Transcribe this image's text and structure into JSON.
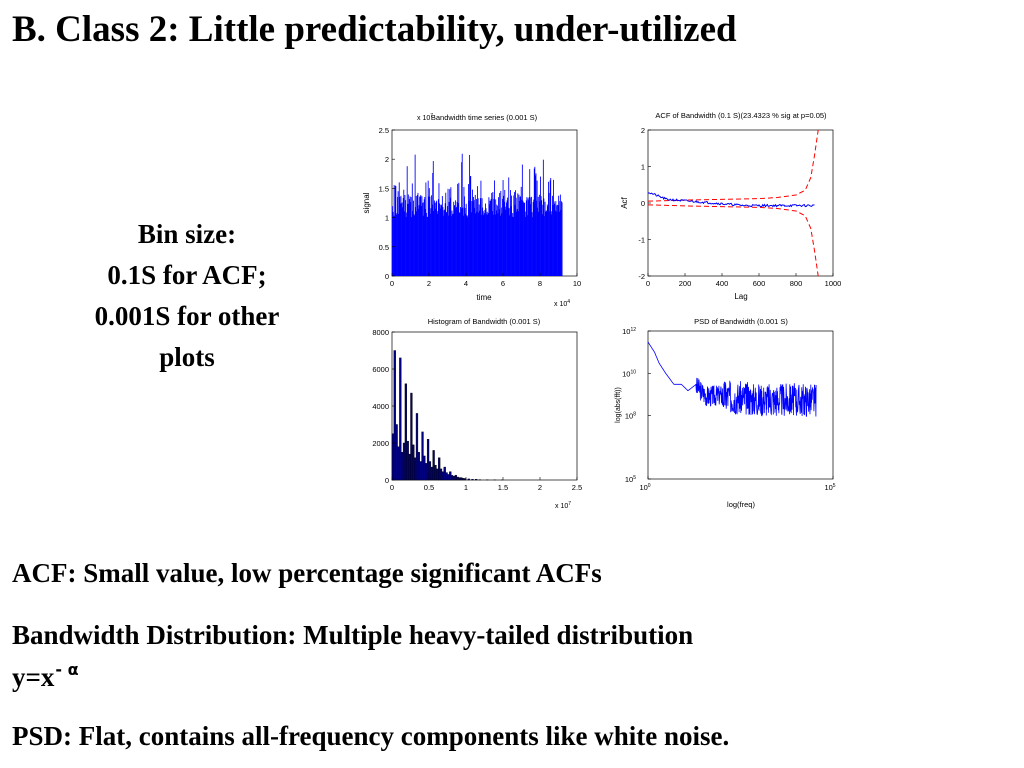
{
  "slide": {
    "title": "B. Class 2: Little predictability, under-utilized",
    "bin_note": [
      "Bin size:",
      "0.1S for ACF;",
      "0.001S for other",
      "plots"
    ],
    "bullets": {
      "acf": "ACF: Small value, low percentage significant ACFs",
      "dist": "Bandwidth Distribution: Multiple heavy-tailed distribution",
      "formula_base": "y=x",
      "formula_exp": "- α",
      "psd": "PSD: Flat, contains all-frequency components like white noise."
    }
  },
  "colors": {
    "series": "#0000ff",
    "significance": "#ff0000",
    "hist_fill": "#000080"
  },
  "chart_data": [
    {
      "type": "bar",
      "title": "Bandwidth time series (0.001 S)",
      "ylabel_multiplier": "x 10",
      "ylabel_multiplier_exp": "7",
      "xlabel": "time",
      "xlabel_multiplier": "x 10",
      "xlabel_multiplier_exp": "4",
      "ylabel": "signal",
      "xlim": [
        0,
        10
      ],
      "ylim": [
        0,
        2.5
      ],
      "xticks": [
        "0",
        "2",
        "4",
        "6",
        "8",
        "10"
      ],
      "yticks": [
        "0",
        "0.5",
        "1",
        "1.5",
        "2",
        "2.5"
      ],
      "data_extent_x": 9.2,
      "baseline": 1.2,
      "peak": 2.2,
      "series": [
        {
          "color": "#0000ff"
        }
      ]
    },
    {
      "type": "line",
      "title": "ACF of Bandwidth (0.1 S)(23.4323 % sig at p=0.05)",
      "xlabel": "Lag",
      "ylabel": "Acf",
      "xlim": [
        0,
        1000
      ],
      "ylim": [
        -2,
        2
      ],
      "xticks": [
        "0",
        "200",
        "400",
        "600",
        "800",
        "1000"
      ],
      "yticks": [
        "-2",
        "-1",
        "0",
        "1",
        "2"
      ],
      "acf": {
        "x": [
          0,
          20,
          100,
          200,
          300,
          400,
          500,
          600,
          700,
          800,
          900
        ],
        "y": [
          0.3,
          0.2,
          0.1,
          0.02,
          0.0,
          -0.05,
          -0.07,
          -0.06,
          -0.05,
          -0.05,
          0.0
        ]
      },
      "confidence_upper": {
        "x": [
          0,
          200,
          400,
          600,
          700,
          800,
          850,
          880,
          900,
          920
        ],
        "y": [
          0.05,
          0.08,
          0.1,
          0.12,
          0.15,
          0.22,
          0.35,
          0.7,
          1.3,
          2.0
        ]
      },
      "confidence_lower": {
        "x": [
          0,
          200,
          400,
          600,
          700,
          800,
          850,
          880,
          900,
          920
        ],
        "y": [
          -0.05,
          -0.08,
          -0.1,
          -0.12,
          -0.15,
          -0.22,
          -0.35,
          -0.7,
          -1.3,
          -2.0
        ]
      }
    },
    {
      "type": "bar",
      "title": "Histogram of Bandwidth (0.001 S)",
      "xlim": [
        0,
        2.5
      ],
      "ylim": [
        0,
        8000
      ],
      "xticks": [
        "0",
        "0.5",
        "1",
        "1.5",
        "2",
        "2.5"
      ],
      "yticks": [
        "0",
        "2000",
        "4000",
        "6000",
        "8000"
      ],
      "xlabel_multiplier": "x 10",
      "xlabel_multiplier_exp": "7",
      "bin_width": 0.025,
      "bins_x": [
        0.025,
        0.05,
        0.075,
        0.1,
        0.125,
        0.15,
        0.175,
        0.2,
        0.225,
        0.25,
        0.275,
        0.3,
        0.325,
        0.35,
        0.375,
        0.4,
        0.425,
        0.45,
        0.475,
        0.5,
        0.525,
        0.55,
        0.575,
        0.6,
        0.625,
        0.65,
        0.675,
        0.7,
        0.725,
        0.75,
        0.775,
        0.8,
        0.825,
        0.85,
        0.875,
        0.9,
        0.925,
        0.95,
        0.975,
        1.0,
        1.05,
        1.1,
        1.15,
        1.2,
        1.3,
        1.4,
        1.5
      ],
      "counts": [
        2500,
        7000,
        3000,
        1800,
        6600,
        1500,
        2000,
        5200,
        2100,
        1400,
        4700,
        1900,
        1200,
        3600,
        1500,
        1000,
        2600,
        1300,
        900,
        2200,
        1000,
        700,
        1600,
        800,
        600,
        1200,
        600,
        450,
        700,
        400,
        300,
        450,
        250,
        200,
        260,
        160,
        130,
        130,
        90,
        80,
        60,
        40,
        40,
        20,
        15,
        10,
        5
      ]
    },
    {
      "type": "line",
      "title": "PSD of Bandwidth (0.001 S)",
      "xlabel": "log(freq)",
      "ylabel": "log(abs(fft))",
      "xscale": "log",
      "yscale": "log",
      "xlim": [
        1,
        100000
      ],
      "ylim": [
        100000,
        1000000000000
      ],
      "xticks": [
        {
          "base": "10",
          "exp": "0"
        },
        {
          "base": "10",
          "exp": "5"
        }
      ],
      "yticks": [
        {
          "base": "10",
          "exp": "5"
        },
        {
          "base": "10",
          "exp": "8"
        },
        {
          "base": "10",
          "exp": "10"
        },
        {
          "base": "10",
          "exp": "12"
        }
      ],
      "envelope_x": [
        1,
        1.5,
        2,
        3,
        5,
        8,
        12,
        20,
        40,
        100,
        500,
        2000,
        10000,
        35000
      ],
      "envelope_y": [
        300000000000,
        100000000000,
        30000000000,
        10000000000,
        3000000000,
        3000000000,
        1500000000,
        3000000000,
        1000000000,
        1200000000,
        900000000,
        800000000,
        800000000,
        800000000
      ]
    }
  ]
}
